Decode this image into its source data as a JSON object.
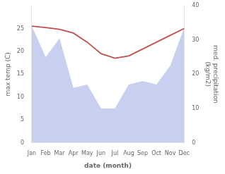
{
  "chart_data": {
    "type": "line",
    "categories": [
      "Jan",
      "Feb",
      "Mar",
      "Apr",
      "May",
      "Jun",
      "Jul",
      "Aug",
      "Sep",
      "Oct",
      "Nov",
      "Dec"
    ],
    "series": [
      {
        "type": "area",
        "axis": "y2",
        "color": "#c8d0f0",
        "values": [
          34.0,
          25.0,
          30.5,
          16.0,
          17.0,
          10.0,
          10.0,
          17.0,
          18.0,
          17.0,
          22.5,
          33.5
        ]
      },
      {
        "type": "line",
        "axis": "y",
        "color": "#c0504d",
        "values": [
          25.5,
          25.2,
          24.8,
          24.0,
          22.0,
          19.5,
          18.5,
          19.0,
          20.5,
          22.0,
          23.5,
          25.0
        ]
      }
    ],
    "xlabel": "date (month)",
    "ylabel": "max temp (C)",
    "y2label": "med. precipitation\n(kg/m2)",
    "ylim": [
      0,
      30
    ],
    "yticks": [
      0,
      5,
      10,
      15,
      20,
      25
    ],
    "y2lim": [
      0,
      40
    ],
    "y2ticks": [
      0,
      10,
      20,
      30,
      40
    ],
    "grid": false
  }
}
